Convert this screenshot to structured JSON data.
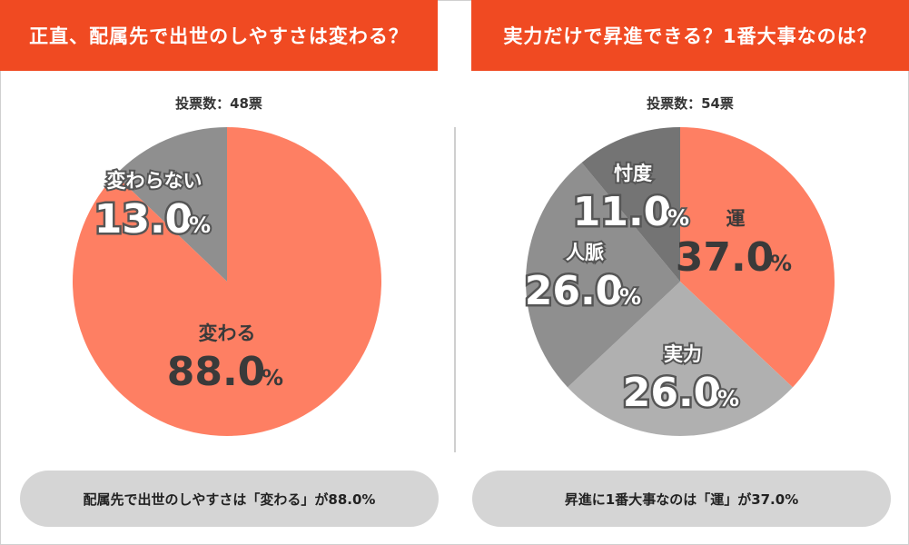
{
  "chart_data": [
    {
      "type": "pie",
      "title": "正直、配属先で出世のしやすさは変わる？",
      "votes": "投票数：48票",
      "slices": [
        {
          "label": "変わらない",
          "value": 13.0,
          "color": "#8f8f8f"
        },
        {
          "label": "変わる",
          "value": 88.0,
          "color": "#fe7f63"
        }
      ],
      "summary": "配属先で出世のしやすさは「変わる」が88.0%"
    },
    {
      "type": "pie",
      "title": "実力だけで昇進できる？1番大事なのは？",
      "votes": "投票数：54票",
      "slices": [
        {
          "label": "運",
          "value": 37.0,
          "color": "#fe7f63"
        },
        {
          "label": "実力",
          "value": 26.0,
          "color": "#b0b0b0"
        },
        {
          "label": "人脈",
          "value": 26.0,
          "color": "#8f8f8f"
        },
        {
          "label": "忖度",
          "value": 11.0,
          "color": "#747474"
        }
      ],
      "summary": "昇進に1番大事なのは「運」が37.0%"
    }
  ],
  "unit": "%"
}
